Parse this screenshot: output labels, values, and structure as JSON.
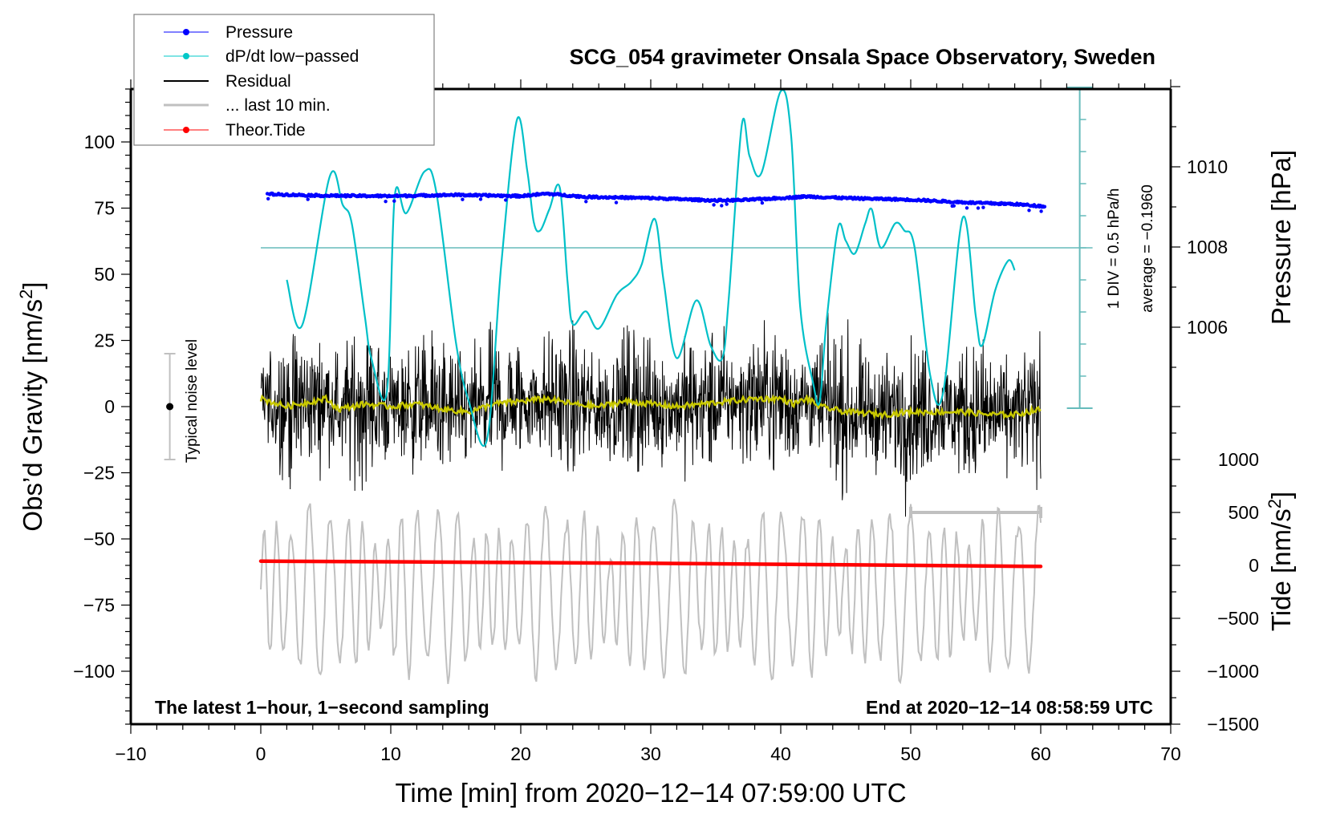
{
  "chart_data": {
    "type": "line",
    "title": "SCG_054 gravimeter Onsala Space Observatory, Sweden",
    "xlabel": "Time [min] from 2020−12−14 07:59:00 UTC",
    "ylabel_left": "Obs’d Gravity [nm/s",
    "ylabel_left_sup": "2",
    "ylabel_left_close": "]",
    "ylabel_right_pressure": "Pressure [hPa]",
    "ylabel_right_tide": "Tide [nm/s",
    "ylabel_right_tide_sup": "2",
    "ylabel_right_tide_close": "]",
    "xlim": [
      -10,
      70
    ],
    "xticks": [
      -10,
      0,
      10,
      20,
      30,
      40,
      50,
      60,
      70
    ],
    "xtick_labels": [
      "−10",
      "0",
      "10",
      "20",
      "30",
      "40",
      "50",
      "60",
      "70"
    ],
    "ylim_gravity": [
      -120,
      120
    ],
    "yticks_gravity": [
      100,
      75,
      50,
      25,
      0,
      -25,
      -50,
      -75,
      -100
    ],
    "ytick_labels_gravity": [
      "100",
      "75",
      "50",
      "25",
      "0",
      "−25",
      "−50",
      "−75",
      "−100"
    ],
    "yticks_pressure": [
      1010,
      1008,
      1006
    ],
    "ytick_labels_pressure": [
      "1010",
      "1008",
      "1006"
    ],
    "yticks_tide": [
      1000,
      500,
      0,
      -500,
      -1000,
      -1500
    ],
    "ytick_labels_tide": [
      "1000",
      "500",
      "0",
      "−500",
      "−1000",
      "−1500"
    ],
    "annotations": {
      "bottom_left": "The latest 1−hour, 1−second sampling",
      "bottom_right": "End at 2020−12−14 08:58:59 UTC",
      "scale_div": "1 DIV = 0.5 hPa/h",
      "scale_avg": "average = −0.1960",
      "noise_label": "Typical noise level"
    },
    "legend": {
      "placement": "top-left",
      "entries": [
        {
          "label": "Pressure",
          "color": "#0000ff",
          "marker": "dot"
        },
        {
          "label": "dP/dt low−passed",
          "color": "#00c8c8",
          "marker": "dot"
        },
        {
          "label": "Residual",
          "color": "#000000",
          "marker": "line"
        },
        {
          "label": "... last 10 min.",
          "color": "#c0c0c0",
          "marker": "line"
        },
        {
          "label": "Theor.Tide",
          "color": "#ff0000",
          "marker": "dot"
        }
      ]
    },
    "colors": {
      "pressure": "#0000ff",
      "dpdt": "#00c0c8",
      "dpdt_scale": "#66bbbb",
      "residual": "#000000",
      "residual_lowpass": "#c8c800",
      "last10": "#c0c0c0",
      "tide": "#ff0000",
      "noise_bar": "#c0c0c0"
    },
    "dpdt_scale": {
      "div_hpa_per_h": 0.5,
      "divisions_each_side": 5,
      "average_hpa_per_h": -0.196,
      "x_min": 63
    },
    "noise_level": {
      "x_min": -7,
      "center": 0,
      "half_range": 20
    },
    "last10_bracket": {
      "x_start": 50,
      "x_end": 60,
      "gravity_value": -40
    },
    "series": [
      {
        "name": "Pressure",
        "unit": "hPa",
        "x": [
          0.5,
          5,
          10,
          15,
          20,
          22,
          25,
          30,
          35,
          37,
          40,
          42,
          45,
          50,
          55,
          58,
          60
        ],
        "values": [
          1009.32,
          1009.28,
          1009.27,
          1009.3,
          1009.27,
          1009.33,
          1009.25,
          1009.22,
          1009.16,
          1009.17,
          1009.22,
          1009.26,
          1009.22,
          1009.18,
          1009.1,
          1009.07,
          1009.02
        ],
        "scatter": 0.05
      },
      {
        "name": "dP/dt low-passed",
        "unit": "hPa/h deviation from average",
        "x": [
          2,
          3.2,
          5.3,
          6.3,
          7,
          8,
          8.5,
          9.7,
          10.3,
          11.2,
          12.6,
          13.5,
          15,
          16,
          17.4,
          18.5,
          19.7,
          20.5,
          21,
          21.5,
          22.2,
          23,
          23.6,
          24,
          25,
          26,
          27.4,
          28.5,
          29.3,
          30.3,
          31,
          32,
          33.5,
          34.6,
          35.5,
          36,
          37,
          37.6,
          38.5,
          40,
          40.8,
          41.5,
          42.5,
          43,
          43.5,
          44.4,
          45,
          45.7,
          46.5,
          47,
          47.7,
          48.8,
          49.5,
          50.3,
          51.5,
          52.5,
          54,
          55,
          55.5,
          56.5,
          57.5,
          58
        ],
        "values": [
          -0.5,
          -1.2,
          1.11,
          0.67,
          0.38,
          -1.06,
          -1.72,
          -2.25,
          0.8,
          0.54,
          1.19,
          0.87,
          -1.46,
          -2.39,
          -2.99,
          -0.26,
          1.99,
          1.2,
          0.4,
          0.27,
          0.6,
          0.94,
          -0.53,
          -1.19,
          -0.99,
          -1.26,
          -0.73,
          -0.53,
          -0.26,
          0.45,
          -0.53,
          -1.72,
          -0.82,
          -1.52,
          -1.72,
          -0.79,
          1.91,
          1.43,
          1.16,
          2.44,
          1.74,
          -0.93,
          -2.12,
          -2.39,
          -1.19,
          0.31,
          0.11,
          -0.09,
          0.38,
          0.6,
          0.0,
          0.38,
          0.27,
          0.0,
          -1.99,
          -2.25,
          0.47,
          -1.06,
          -1.52,
          -0.66,
          -0.2,
          -0.35
        ]
      },
      {
        "name": "Residual",
        "unit": "nm/s2",
        "x_range": [
          0,
          60
        ],
        "envelope_amplitude": 35,
        "peak_max": 40,
        "peak_min": -48,
        "lowpass_x": [
          0,
          2,
          4,
          5,
          6,
          8,
          10,
          12,
          14,
          16,
          18,
          20,
          22,
          24,
          26,
          28,
          30,
          32,
          34,
          36,
          38,
          40,
          41,
          42,
          43,
          45,
          48,
          50,
          52,
          54,
          56,
          58,
          60
        ],
        "lowpass_values": [
          3,
          0,
          2,
          3,
          -1,
          1,
          0,
          1,
          -1,
          -2,
          1,
          2,
          3,
          1,
          0,
          2,
          1,
          0,
          1,
          2,
          3,
          3,
          1,
          3,
          0,
          -2,
          -3,
          -2,
          -2,
          -2,
          -3,
          -3,
          -1
        ]
      },
      {
        "name": "... last 10 min.",
        "unit": "nm/s2 (plotted around gravity offset)",
        "offset": -70,
        "amplitude_typical": 25,
        "amplitude_max": 95
      },
      {
        "name": "Theor.Tide",
        "unit": "nm/s2",
        "x": [
          0,
          15,
          30,
          45,
          60
        ],
        "values": [
          40,
          30,
          20,
          5,
          -10
        ]
      }
    ]
  }
}
